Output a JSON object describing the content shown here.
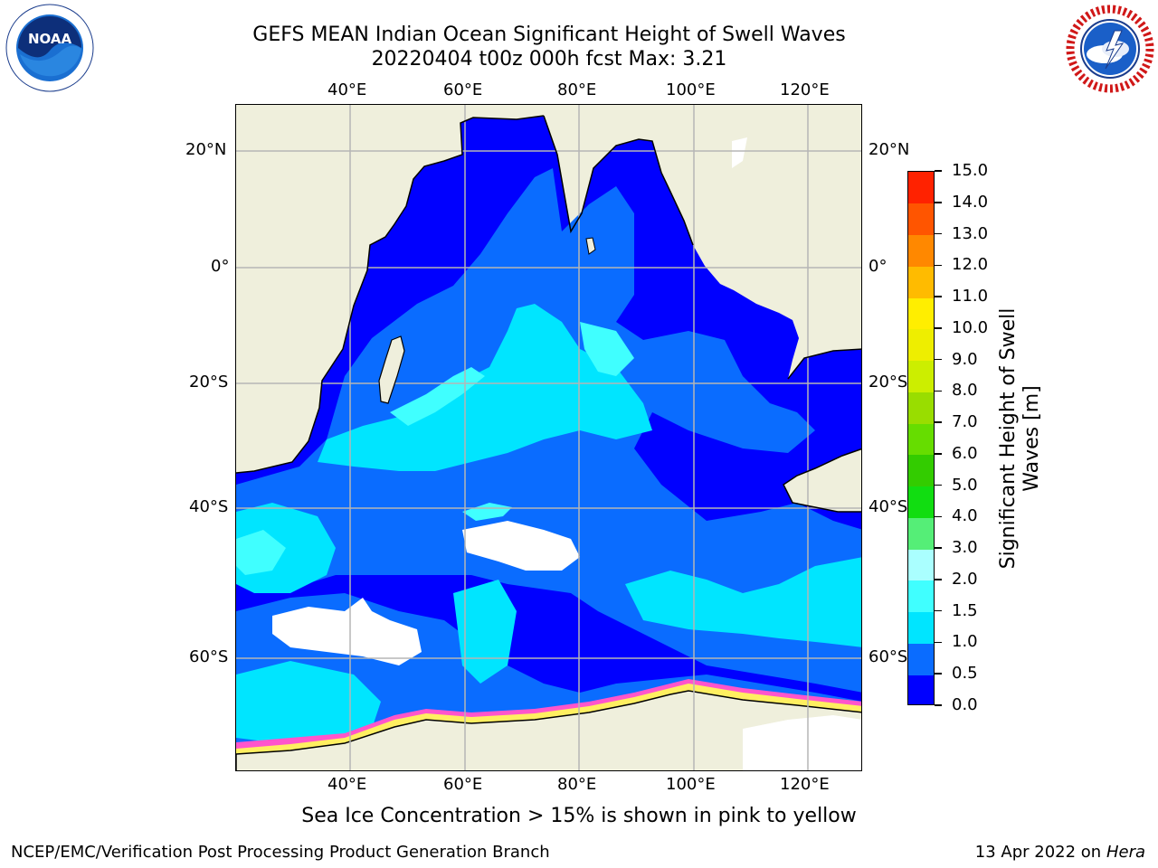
{
  "title": {
    "line1": "GEFS MEAN Indian Ocean Significant Height of Swell Waves",
    "line2": "20220404 t00z 000h fcst   Max: 3.21"
  },
  "logos": {
    "left": {
      "text": "NOAA",
      "ring_text": "NATIONAL OCEANIC AND ATMOSPHERIC ADMINISTRATION · U.S. DEPARTMENT OF COMMERCE",
      "icon": "noaa-logo-icon"
    },
    "right": {
      "ring_text": "NATIONAL WEATHER SERVICE",
      "icon": "nws-logo-icon"
    }
  },
  "map": {
    "lon_labels_top": [
      "40°E",
      "60°E",
      "80°E",
      "100°E",
      "120°E"
    ],
    "lon_labels_bottom": [
      "40°E",
      "60°E",
      "80°E",
      "100°E",
      "120°E"
    ],
    "lat_labels_left": [
      "20°N",
      "0°",
      "20°S",
      "40°S",
      "60°S"
    ],
    "lat_labels_right": [
      "20°N",
      "0°",
      "20°S",
      "40°S",
      "60°S"
    ],
    "ocean_colors": {
      "c0": "#0000ff",
      "c05": "#0a6cff",
      "c1": "#00e5ff",
      "c15": "#40ffff",
      "land": "#efefdc",
      "ice_pink": "#ff55cc",
      "ice_yellow": "#ffef60"
    }
  },
  "colorbar": {
    "title": "Significant Height of Swell Waves [m]",
    "ticks": [
      "0.0",
      "0.5",
      "1.0",
      "1.5",
      "2.0",
      "3.0",
      "4.0",
      "5.0",
      "6.0",
      "7.0",
      "8.0",
      "9.0",
      "10.0",
      "11.0",
      "12.0",
      "13.0",
      "14.0",
      "15.0"
    ],
    "colors": [
      "#0000ff",
      "#0a6cff",
      "#00e5ff",
      "#40ffff",
      "#aaffff",
      "#55ee77",
      "#11dd11",
      "#33cc00",
      "#66dd00",
      "#99dd00",
      "#ccee00",
      "#eeee00",
      "#ffee00",
      "#ffbb00",
      "#ff8800",
      "#ff5500",
      "#ff2200"
    ]
  },
  "footnote": "Sea Ice Concentration > 15% is shown in pink to yellow",
  "credit_left": "NCEP/EMC/Verification Post Processing Product Generation Branch",
  "credit_right_date": "13 Apr 2022 on",
  "credit_right_machine": "Hera"
}
